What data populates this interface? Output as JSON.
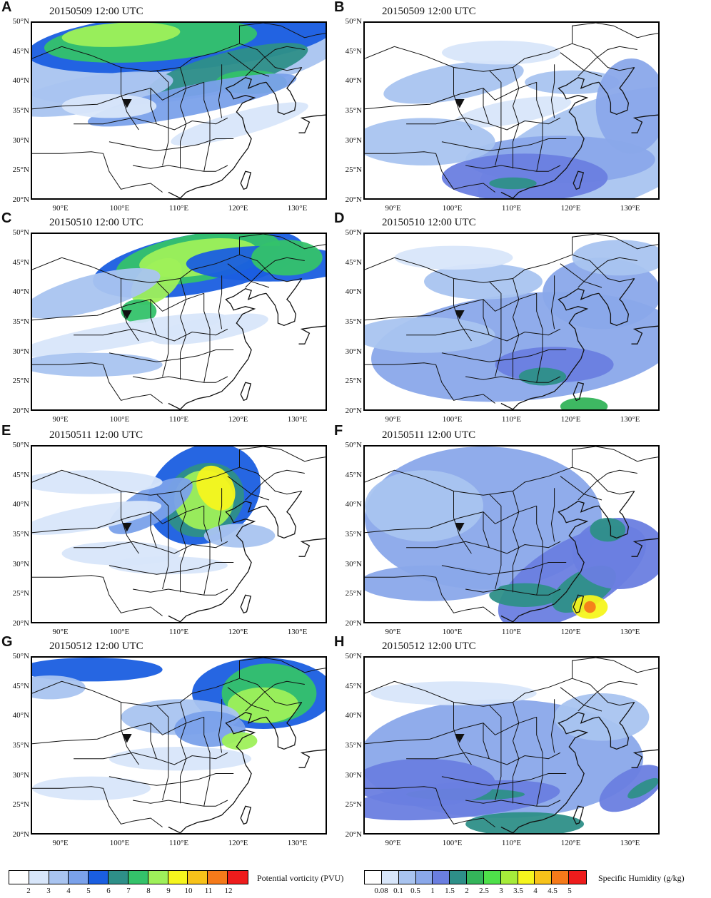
{
  "panels": [
    {
      "letter": "A",
      "title": "20150509 12:00 UTC",
      "variable": "potential-vorticity"
    },
    {
      "letter": "B",
      "title": "20150509 12:00 UTC",
      "variable": "specific-humidity"
    },
    {
      "letter": "C",
      "title": "20150510 12:00 UTC",
      "variable": "potential-vorticity"
    },
    {
      "letter": "D",
      "title": "20150510 12:00 UTC",
      "variable": "specific-humidity"
    },
    {
      "letter": "E",
      "title": "20150511 12:00 UTC",
      "variable": "potential-vorticity"
    },
    {
      "letter": "F",
      "title": "20150511 12:00 UTC",
      "variable": "specific-humidity"
    },
    {
      "letter": "G",
      "title": "20150512 12:00 UTC",
      "variable": "potential-vorticity"
    },
    {
      "letter": "H",
      "title": "20150512 12:00 UTC",
      "variable": "specific-humidity"
    }
  ],
  "map_extent": {
    "lon": [
      85,
      135
    ],
    "lat": [
      20,
      50
    ]
  },
  "lat_ticks": [
    "20°N",
    "25°N",
    "30°N",
    "35°N",
    "40°N",
    "45°N",
    "50°N"
  ],
  "lon_ticks": [
    "90°E",
    "100°E",
    "110°E",
    "120°E",
    "130°E"
  ],
  "station_marker": {
    "lon": 101,
    "lat": 36.5,
    "icon": "inverted-triangle-marker-icon"
  },
  "colorbars": {
    "pv": {
      "title": "Potential vorticity (PVU)",
      "tick_labels": [
        "2",
        "3",
        "4",
        "5",
        "6",
        "7",
        "8",
        "9",
        "10",
        "11",
        "12"
      ],
      "colors": [
        "#ffffff",
        "#d8e6fa",
        "#a9c4f0",
        "#7aa1ea",
        "#1a5ee0",
        "#2e8f88",
        "#34c26a",
        "#9ef05a",
        "#f5f51e",
        "#f7c21a",
        "#f57a1a",
        "#ee1c1c"
      ]
    },
    "sh": {
      "title": "Specific Humidity (g/kg)",
      "tick_labels": [
        "0.08",
        "0.1",
        "0.5",
        "1",
        "1.5",
        "2",
        "2.5",
        "3",
        "3.5",
        "4",
        "4.5",
        "5"
      ],
      "colors": [
        "#ffffff",
        "#d8e6fa",
        "#a9c4f0",
        "#8aa8ea",
        "#6a7ee0",
        "#2e8f88",
        "#34b45a",
        "#4ee04a",
        "#a6ec3a",
        "#f5f51e",
        "#f7c21a",
        "#f57a1a",
        "#ee1c1c"
      ]
    }
  }
}
